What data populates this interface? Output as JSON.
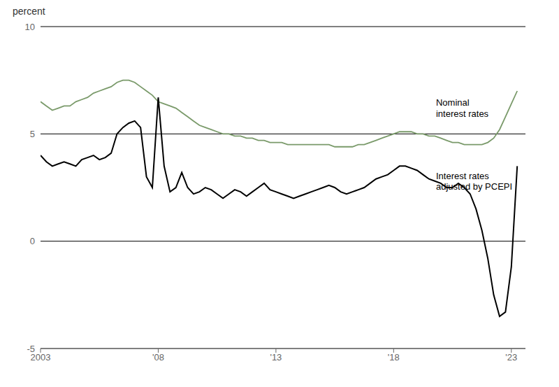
{
  "chart_data": {
    "type": "line",
    "y_label": "percent",
    "grid": false,
    "xlim": [
      2003.0,
      2023.6
    ],
    "ylim": [
      -5,
      10
    ],
    "yticks": [
      -5,
      0,
      5,
      10
    ],
    "xticks": [
      2003,
      {
        "value": 2008,
        "label": "'08"
      },
      {
        "value": 2013,
        "label": "'13"
      },
      {
        "value": 2018,
        "label": "'18"
      },
      {
        "value": 2023,
        "label": "'23"
      }
    ],
    "hlines": [
      0,
      5,
      10
    ],
    "x": [
      2003.0,
      2003.25,
      2003.5,
      2003.75,
      2004.0,
      2004.25,
      2004.5,
      2004.75,
      2005.0,
      2005.25,
      2005.5,
      2005.75,
      2006.0,
      2006.25,
      2006.5,
      2006.75,
      2007.0,
      2007.25,
      2007.5,
      2007.75,
      2008.0,
      2008.25,
      2008.5,
      2008.75,
      2009.0,
      2009.25,
      2009.5,
      2009.75,
      2010.0,
      2010.25,
      2010.5,
      2010.75,
      2011.0,
      2011.25,
      2011.5,
      2011.75,
      2012.0,
      2012.25,
      2012.5,
      2012.75,
      2013.0,
      2013.25,
      2013.5,
      2013.75,
      2014.0,
      2014.25,
      2014.5,
      2014.75,
      2015.0,
      2015.25,
      2015.5,
      2015.75,
      2016.0,
      2016.25,
      2016.5,
      2016.75,
      2017.0,
      2017.25,
      2017.5,
      2017.75,
      2018.0,
      2018.25,
      2018.5,
      2018.75,
      2019.0,
      2019.25,
      2019.5,
      2019.75,
      2020.0,
      2020.25,
      2020.5,
      2020.75,
      2021.0,
      2021.25,
      2021.5,
      2021.75,
      2022.0,
      2022.25,
      2022.5,
      2022.75,
      2023.0,
      2023.25
    ],
    "series": [
      {
        "color": "#7a9a6a",
        "values": [
          6.5,
          6.3,
          6.1,
          6.2,
          6.3,
          6.3,
          6.5,
          6.6,
          6.7,
          6.9,
          7.0,
          7.1,
          7.2,
          7.4,
          7.5,
          7.5,
          7.4,
          7.2,
          7.0,
          6.8,
          6.5,
          6.4,
          6.3,
          6.2,
          6.0,
          5.8,
          5.6,
          5.4,
          5.3,
          5.2,
          5.1,
          5.0,
          5.0,
          4.9,
          4.9,
          4.8,
          4.8,
          4.7,
          4.7,
          4.6,
          4.6,
          4.6,
          4.5,
          4.5,
          4.5,
          4.5,
          4.5,
          4.5,
          4.5,
          4.5,
          4.4,
          4.4,
          4.4,
          4.4,
          4.5,
          4.5,
          4.6,
          4.7,
          4.8,
          4.9,
          5.0,
          5.1,
          5.1,
          5.1,
          5.0,
          5.0,
          4.9,
          4.9,
          4.8,
          4.7,
          4.6,
          4.6,
          4.5,
          4.5,
          4.5,
          4.5,
          4.6,
          4.8,
          5.2,
          5.8,
          6.4,
          7.0
        ]
      },
      {
        "color": "#000000",
        "values": [
          4.0,
          3.7,
          3.5,
          3.6,
          3.7,
          3.6,
          3.5,
          3.8,
          3.9,
          4.0,
          3.8,
          3.9,
          4.1,
          5.0,
          5.3,
          5.5,
          5.6,
          5.3,
          3.0,
          2.5,
          6.7,
          3.5,
          2.3,
          2.5,
          3.2,
          2.5,
          2.2,
          2.3,
          2.5,
          2.4,
          2.2,
          2.0,
          2.2,
          2.4,
          2.3,
          2.1,
          2.3,
          2.5,
          2.7,
          2.4,
          2.3,
          2.2,
          2.1,
          2.0,
          2.1,
          2.2,
          2.3,
          2.4,
          2.5,
          2.6,
          2.5,
          2.3,
          2.2,
          2.3,
          2.4,
          2.5,
          2.7,
          2.9,
          3.0,
          3.1,
          3.3,
          3.5,
          3.5,
          3.4,
          3.3,
          3.1,
          2.9,
          2.8,
          2.7,
          2.5,
          2.5,
          2.7,
          2.5,
          2.2,
          1.5,
          0.5,
          -0.8,
          -2.5,
          -3.5,
          -3.3,
          -1.2,
          3.5
        ]
      }
    ],
    "annotations": [
      {
        "text": "Nominal\ninterest rates",
        "x": 2019.8,
        "y": 6.2
      },
      {
        "text": "Interest rates\nadjusted by PCEPI",
        "x": 2019.8,
        "y": 2.8
      }
    ]
  }
}
